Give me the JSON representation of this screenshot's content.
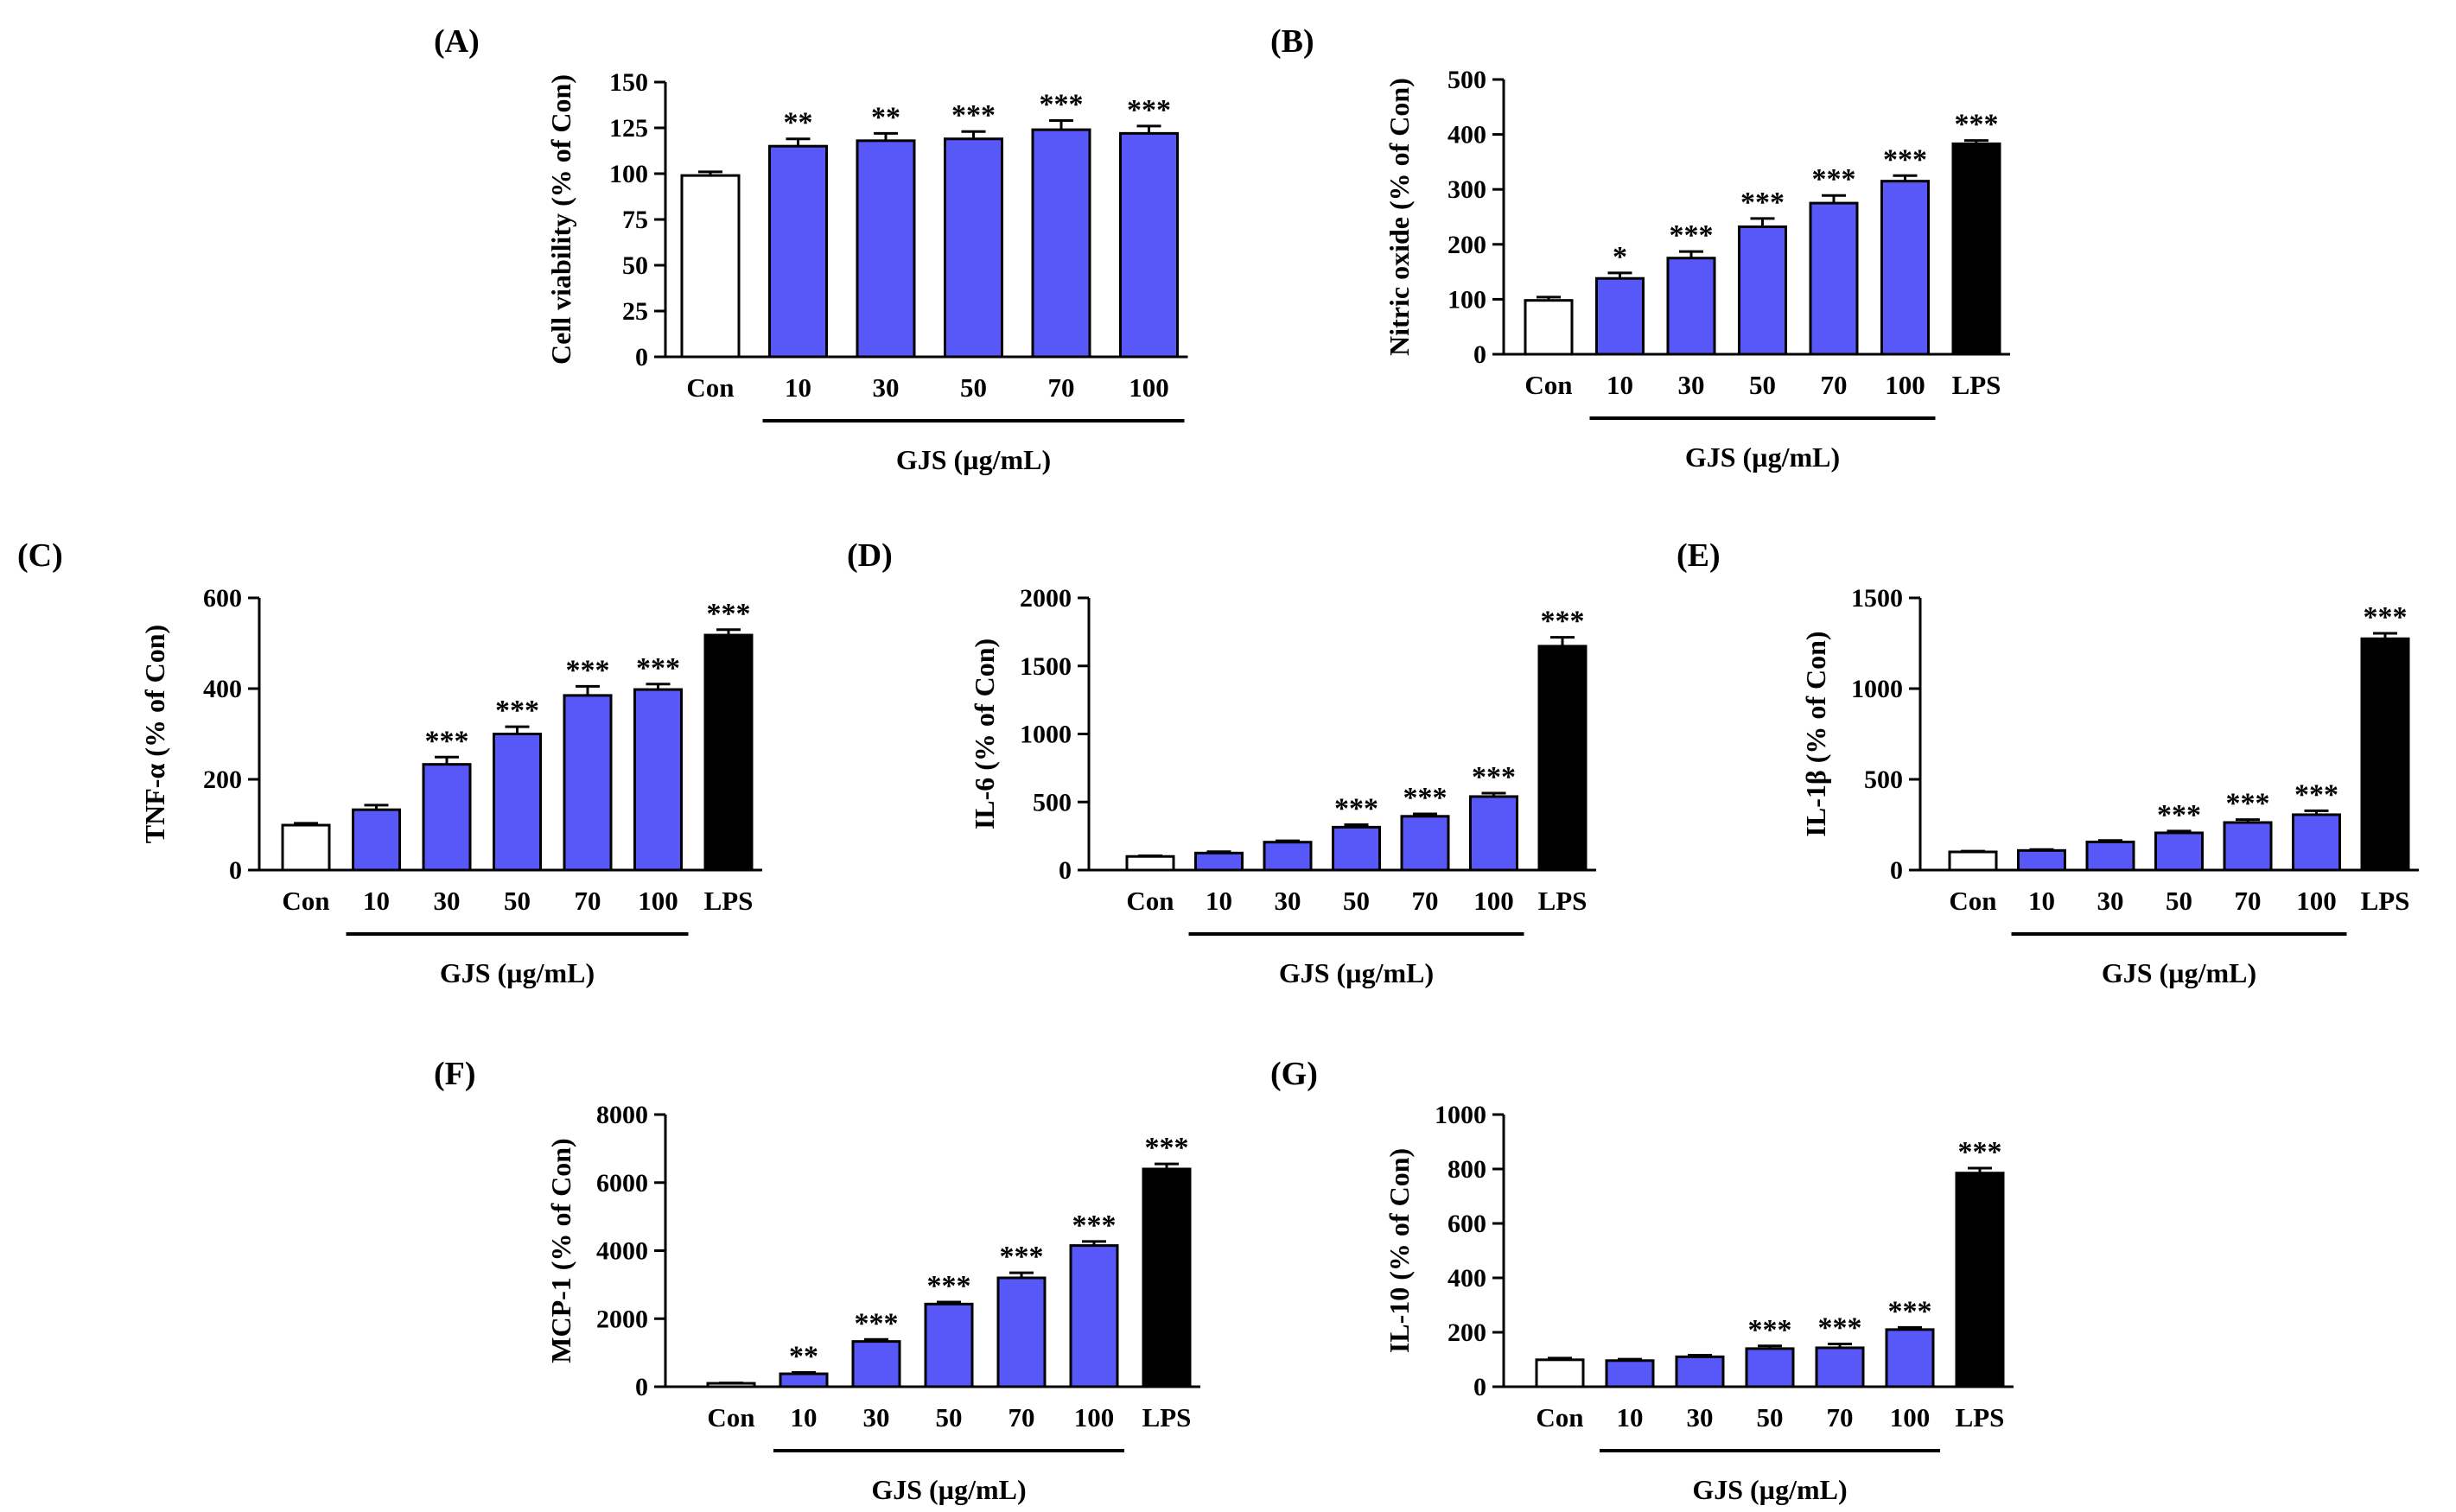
{
  "colors": {
    "con": "#ffffff",
    "gjs": "#5858f8",
    "lps": "#000000",
    "stroke": "#000000"
  },
  "chart_data": [
    {
      "panel": "(A)",
      "type": "bar",
      "ylabel": "Cell viability (% of Con)",
      "group_label": "GJS (µg/mL)",
      "categories": [
        "Con",
        "10",
        "30",
        "50",
        "70",
        "100"
      ],
      "kinds": [
        "con",
        "gjs",
        "gjs",
        "gjs",
        "gjs",
        "gjs"
      ],
      "values": [
        99,
        115,
        118,
        119,
        124,
        122
      ],
      "errors": [
        2,
        4,
        4,
        4,
        5,
        4
      ],
      "significance": [
        "",
        "**",
        "**",
        "***",
        "***",
        "***"
      ],
      "ylim": [
        0,
        150
      ],
      "ticks": [
        0,
        25,
        50,
        75,
        100,
        125,
        150
      ]
    },
    {
      "panel": "(B)",
      "type": "bar",
      "ylabel": "Nitric oxide (% of Con)",
      "group_label": "GJS (µg/mL)",
      "categories": [
        "Con",
        "10",
        "30",
        "50",
        "70",
        "100",
        "LPS"
      ],
      "kinds": [
        "con",
        "gjs",
        "gjs",
        "gjs",
        "gjs",
        "gjs",
        "lps"
      ],
      "values": [
        98,
        138,
        175,
        232,
        275,
        315,
        383
      ],
      "errors": [
        6,
        10,
        12,
        15,
        14,
        10,
        6
      ],
      "significance": [
        "",
        "*",
        "***",
        "***",
        "***",
        "***",
        "***"
      ],
      "ylim": [
        0,
        500
      ],
      "ticks": [
        0,
        100,
        200,
        300,
        400,
        500
      ]
    },
    {
      "panel": "(C)",
      "type": "bar",
      "ylabel": "TNF-α (% of Con)",
      "group_label": "GJS (µg/mL)",
      "categories": [
        "Con",
        "10",
        "30",
        "50",
        "70",
        "100",
        "LPS"
      ],
      "kinds": [
        "con",
        "gjs",
        "gjs",
        "gjs",
        "gjs",
        "gjs",
        "lps"
      ],
      "values": [
        99,
        133,
        233,
        300,
        385,
        398,
        518
      ],
      "errors": [
        4,
        10,
        16,
        16,
        20,
        12,
        12
      ],
      "significance": [
        "",
        "",
        "***",
        "***",
        "***",
        "***",
        "***"
      ],
      "ylim": [
        0,
        600
      ],
      "ticks": [
        0,
        200,
        400,
        600
      ]
    },
    {
      "panel": "(D)",
      "type": "bar",
      "ylabel": "IL-6 (% of Con)",
      "group_label": "GJS (µg/mL)",
      "categories": [
        "Con",
        "10",
        "30",
        "50",
        "70",
        "100",
        "LPS"
      ],
      "kinds": [
        "con",
        "gjs",
        "gjs",
        "gjs",
        "gjs",
        "gjs",
        "lps"
      ],
      "values": [
        100,
        125,
        205,
        315,
        395,
        540,
        1645
      ],
      "errors": [
        5,
        10,
        10,
        18,
        18,
        25,
        65
      ],
      "significance": [
        "",
        "",
        "",
        "***",
        "***",
        "***",
        "***"
      ],
      "ylim": [
        0,
        2000
      ],
      "ticks": [
        0,
        500,
        1000,
        1500,
        2000
      ]
    },
    {
      "panel": "(E)",
      "type": "bar",
      "ylabel": "IL-1β (% of Con)",
      "group_label": "GJS (µg/mL)",
      "categories": [
        "Con",
        "10",
        "30",
        "50",
        "70",
        "100",
        "LPS"
      ],
      "kinds": [
        "con",
        "gjs",
        "gjs",
        "gjs",
        "gjs",
        "gjs",
        "lps"
      ],
      "values": [
        100,
        108,
        155,
        205,
        262,
        305,
        1275
      ],
      "errors": [
        4,
        5,
        8,
        10,
        16,
        22,
        30
      ],
      "significance": [
        "",
        "",
        "",
        "***",
        "***",
        "***",
        "***"
      ],
      "ylim": [
        0,
        1500
      ],
      "ticks": [
        0,
        500,
        1000,
        1500
      ]
    },
    {
      "panel": "(F)",
      "type": "bar",
      "ylabel": "MCP-1 (% of Con)",
      "group_label": "GJS (µg/mL)",
      "categories": [
        "Con",
        "10",
        "30",
        "50",
        "70",
        "100",
        "LPS"
      ],
      "kinds": [
        "con",
        "gjs",
        "gjs",
        "gjs",
        "gjs",
        "gjs",
        "lps"
      ],
      "values": [
        100,
        380,
        1330,
        2430,
        3200,
        4150,
        6400
      ],
      "errors": [
        10,
        40,
        60,
        60,
        150,
        120,
        150
      ],
      "significance": [
        "",
        "**",
        "***",
        "***",
        "***",
        "***",
        "***"
      ],
      "ylim": [
        0,
        8000
      ],
      "ticks": [
        0,
        2000,
        4000,
        6000,
        8000
      ]
    },
    {
      "panel": "(G)",
      "type": "bar",
      "ylabel": "IL-10 (% of Con)",
      "group_label": "GJS (µg/mL)",
      "categories": [
        "Con",
        "10",
        "30",
        "50",
        "70",
        "100",
        "LPS"
      ],
      "kinds": [
        "con",
        "gjs",
        "gjs",
        "gjs",
        "gjs",
        "gjs",
        "lps"
      ],
      "values": [
        99,
        96,
        110,
        140,
        143,
        210,
        785
      ],
      "errors": [
        6,
        5,
        6,
        10,
        14,
        8,
        18
      ],
      "significance": [
        "",
        "",
        "",
        "***",
        "***",
        "***",
        "***"
      ],
      "ylim": [
        0,
        1000
      ],
      "ticks": [
        0,
        200,
        400,
        600,
        800,
        1000
      ]
    }
  ]
}
